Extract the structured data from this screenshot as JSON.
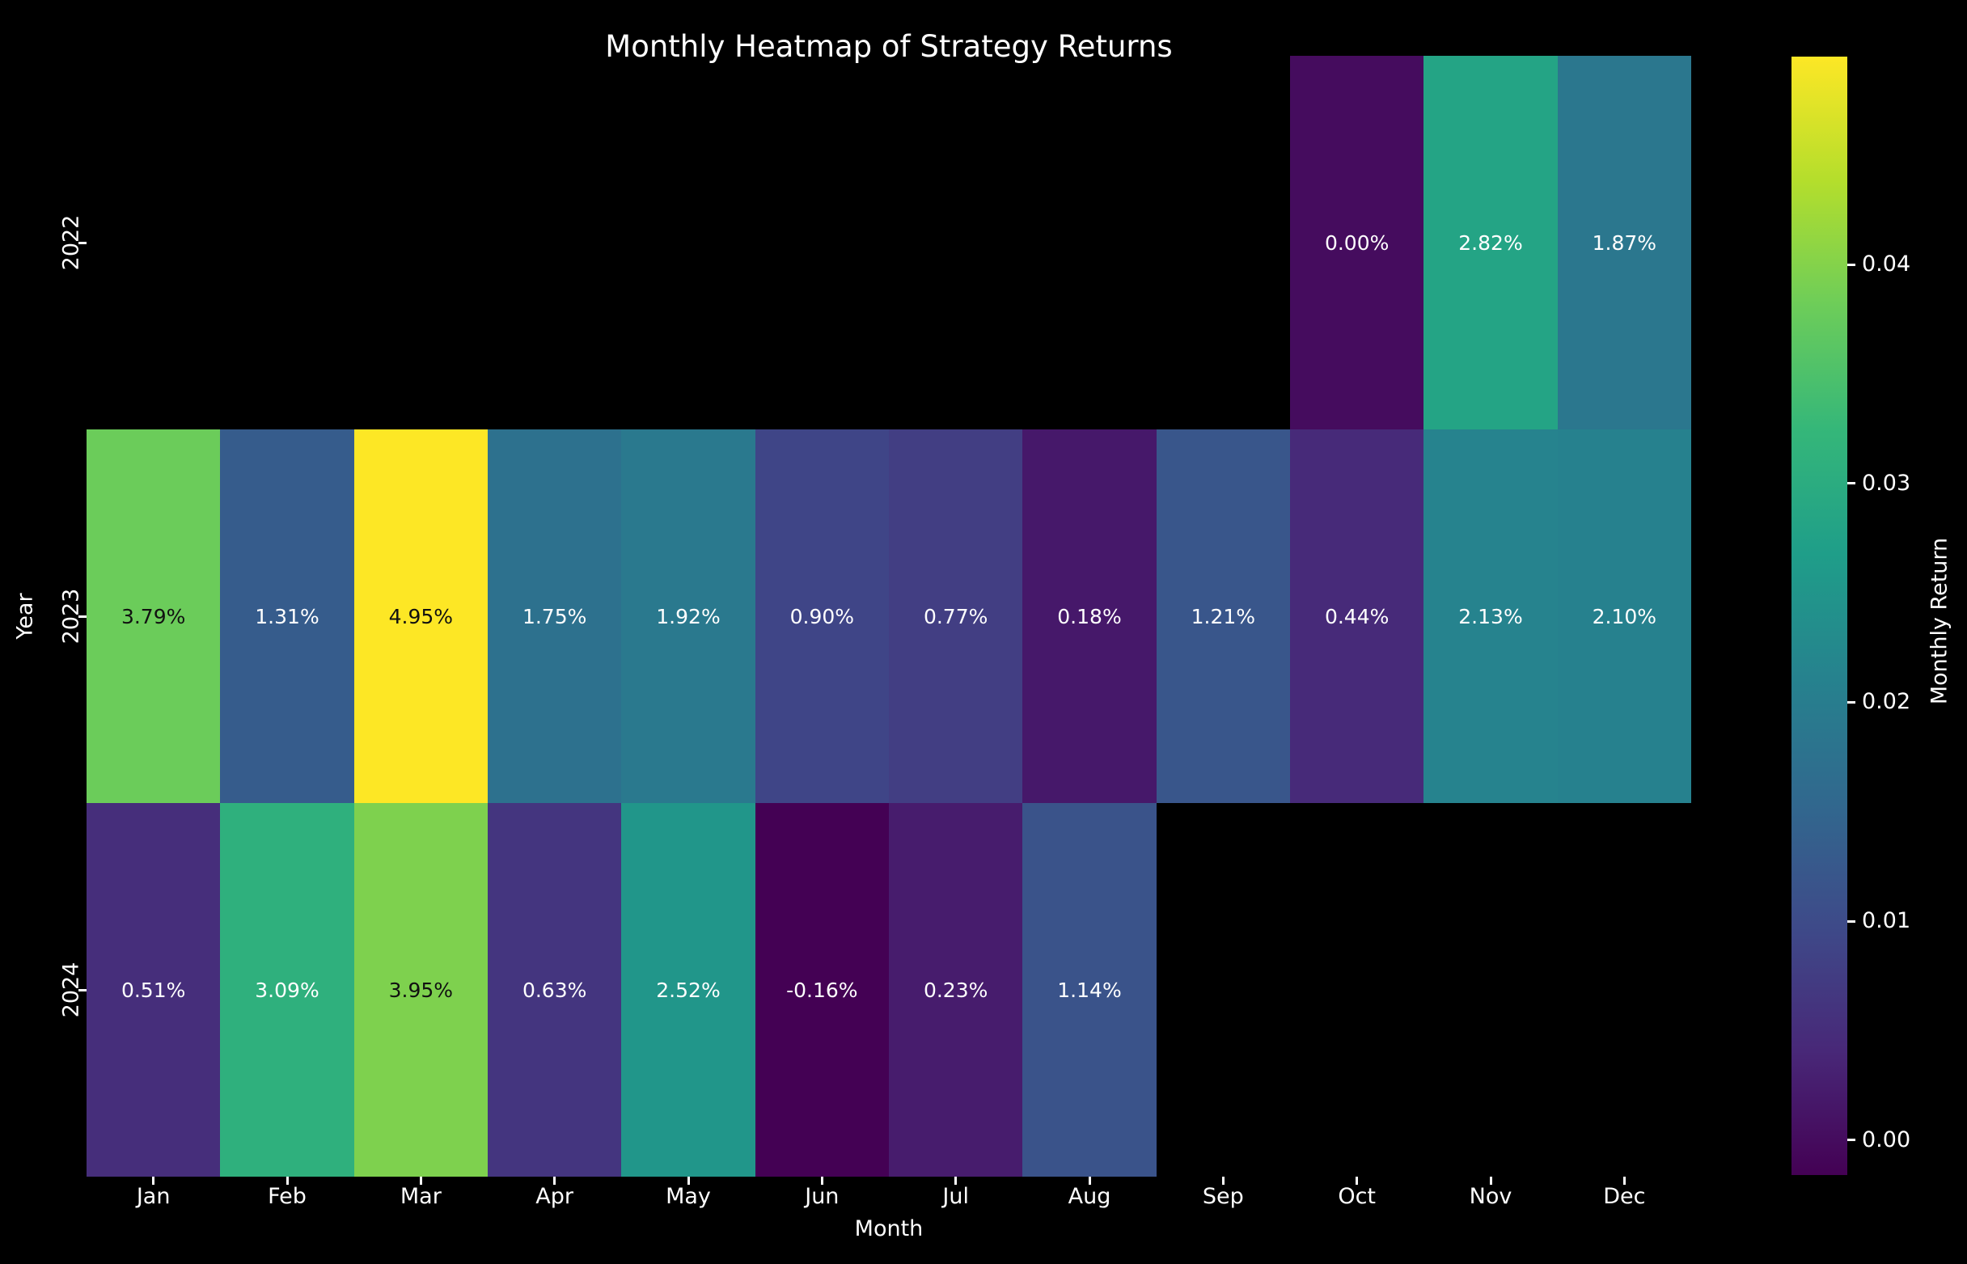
{
  "figure": {
    "background": "#000000",
    "text_color": "#ffffff",
    "annotation_dark_text_color": "#111111"
  },
  "chart_data": {
    "type": "heatmap",
    "title": "Monthly Heatmap of Strategy Returns",
    "xlabel": "Month",
    "ylabel": "Year",
    "colorbar_label": "Monthly Return",
    "colormap": "viridis",
    "vmin": -0.0016,
    "vmax": 0.0495,
    "x_tick_labels": [
      "Jan",
      "Feb",
      "Mar",
      "Apr",
      "May",
      "Jun",
      "Jul",
      "Aug",
      "Sep",
      "Oct",
      "Nov",
      "Dec"
    ],
    "y_tick_labels": [
      "2022",
      "2023",
      "2024"
    ],
    "colorbar_ticks": [
      {
        "value": 0.0,
        "label": "0.00"
      },
      {
        "value": 0.01,
        "label": "0.01"
      },
      {
        "value": 0.02,
        "label": "0.02"
      },
      {
        "value": 0.03,
        "label": "0.03"
      },
      {
        "value": 0.04,
        "label": "0.04"
      }
    ],
    "viridis_stops": [
      "#440154",
      "#482878",
      "#3e4a89",
      "#31688e",
      "#26828e",
      "#1f9e89",
      "#35b779",
      "#6dcd59",
      "#b4de2c",
      "#fde725"
    ],
    "series": [
      {
        "name": "2022",
        "values": [
          null,
          null,
          null,
          null,
          null,
          null,
          null,
          null,
          null,
          0.0,
          0.0282,
          0.0187
        ],
        "labels": [
          null,
          null,
          null,
          null,
          null,
          null,
          null,
          null,
          null,
          "0.00%",
          "2.82%",
          "1.87%"
        ]
      },
      {
        "name": "2023",
        "values": [
          0.0379,
          0.0131,
          0.0495,
          0.0175,
          0.0192,
          0.009,
          0.0077,
          0.0018,
          0.0121,
          0.0044,
          0.0213,
          0.021
        ],
        "labels": [
          "3.79%",
          "1.31%",
          "4.95%",
          "1.75%",
          "1.92%",
          "0.90%",
          "0.77%",
          "0.18%",
          "1.21%",
          "0.44%",
          "2.13%",
          "2.10%"
        ]
      },
      {
        "name": "2024",
        "values": [
          0.0051,
          0.0309,
          0.0395,
          0.0063,
          0.0252,
          -0.0016,
          0.0023,
          0.0114,
          null,
          null,
          null,
          null
        ],
        "labels": [
          "0.51%",
          "3.09%",
          "3.95%",
          "0.63%",
          "2.52%",
          "-0.16%",
          "0.23%",
          "1.14%",
          null,
          null,
          null,
          null
        ]
      }
    ]
  }
}
